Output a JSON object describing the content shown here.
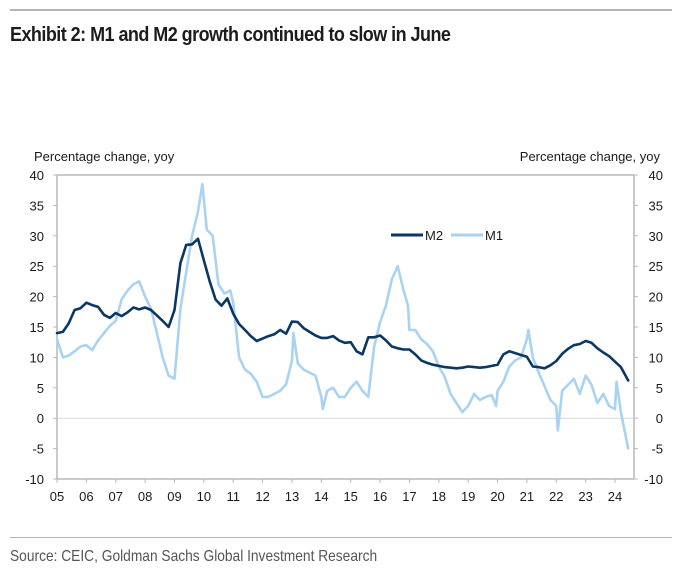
{
  "header": {
    "title": "Exhibit 2: M1 and M2 growth continued to slow in June"
  },
  "footer": {
    "source": "Source: CEIC, Goldman Sachs Global Investment Research"
  },
  "chart_data": {
    "type": "line",
    "title": "Exhibit 2: M1 and M2 growth continued to slow in June",
    "xlabel": "",
    "ylabel_left": "Percentage change, yoy",
    "ylabel_right": "Percentage change, yoy",
    "ylim": [
      -10,
      40
    ],
    "xlim": [
      2005,
      2024.65
    ],
    "yticks": [
      -10,
      -5,
      0,
      5,
      10,
      15,
      20,
      25,
      30,
      35,
      40
    ],
    "xtick_values": [
      2005,
      2006,
      2007,
      2008,
      2009,
      2010,
      2011,
      2012,
      2013,
      2014,
      2015,
      2016,
      2017,
      2018,
      2019,
      2020,
      2021,
      2022,
      2023,
      2024
    ],
    "xtick_labels": [
      "05",
      "06",
      "07",
      "08",
      "09",
      "10",
      "11",
      "12",
      "13",
      "14",
      "15",
      "16",
      "17",
      "18",
      "19",
      "20",
      "21",
      "22",
      "23",
      "24"
    ],
    "grid": "zero-line only",
    "legend": {
      "placement": "top-right",
      "entries": [
        "M2",
        "M1"
      ]
    },
    "colors": {
      "M2": "#0b3763",
      "M1": "#a9d3f2",
      "axis": "#b8b8b8",
      "zero_line": "#d9d9d9"
    },
    "series": [
      {
        "name": "M2",
        "x": [
          2005.0,
          2005.2,
          2005.4,
          2005.6,
          2005.8,
          2006.0,
          2006.2,
          2006.4,
          2006.6,
          2006.8,
          2007.0,
          2007.2,
          2007.4,
          2007.6,
          2007.8,
          2008.0,
          2008.2,
          2008.4,
          2008.6,
          2008.8,
          2009.0,
          2009.2,
          2009.4,
          2009.6,
          2009.8,
          2010.0,
          2010.2,
          2010.4,
          2010.6,
          2010.8,
          2011.0,
          2011.2,
          2011.4,
          2011.6,
          2011.8,
          2012.0,
          2012.2,
          2012.4,
          2012.6,
          2012.8,
          2013.0,
          2013.2,
          2013.4,
          2013.6,
          2013.8,
          2014.0,
          2014.2,
          2014.4,
          2014.6,
          2014.8,
          2015.0,
          2015.2,
          2015.4,
          2015.6,
          2015.8,
          2016.0,
          2016.2,
          2016.4,
          2016.6,
          2016.8,
          2017.0,
          2017.2,
          2017.4,
          2017.6,
          2017.8,
          2018.0,
          2018.2,
          2018.4,
          2018.6,
          2018.8,
          2019.0,
          2019.2,
          2019.4,
          2019.6,
          2019.8,
          2020.0,
          2020.2,
          2020.4,
          2020.6,
          2020.8,
          2021.0,
          2021.2,
          2021.4,
          2021.6,
          2021.8,
          2022.0,
          2022.2,
          2022.4,
          2022.6,
          2022.8,
          2023.0,
          2023.2,
          2023.4,
          2023.6,
          2023.8,
          2024.0,
          2024.2,
          2024.45
        ],
        "values": [
          14.0,
          14.2,
          15.6,
          17.8,
          18.1,
          19.0,
          18.6,
          18.3,
          17.0,
          16.5,
          17.3,
          16.8,
          17.4,
          18.2,
          17.9,
          18.2,
          17.8,
          16.9,
          16.0,
          15.0,
          17.8,
          25.5,
          28.5,
          28.6,
          29.5,
          26.0,
          22.5,
          19.5,
          18.5,
          19.7,
          17.2,
          15.5,
          14.5,
          13.5,
          12.7,
          13.1,
          13.5,
          13.8,
          14.5,
          13.9,
          15.9,
          15.8,
          14.8,
          14.2,
          13.6,
          13.2,
          13.2,
          13.5,
          12.8,
          12.4,
          12.5,
          11.0,
          10.5,
          13.3,
          13.3,
          13.6,
          12.8,
          11.8,
          11.5,
          11.3,
          11.3,
          10.5,
          9.5,
          9.1,
          8.8,
          8.6,
          8.4,
          8.3,
          8.2,
          8.3,
          8.5,
          8.4,
          8.3,
          8.4,
          8.6,
          8.8,
          10.5,
          11.0,
          10.7,
          10.4,
          10.1,
          8.5,
          8.4,
          8.2,
          8.7,
          9.4,
          10.6,
          11.4,
          12.0,
          12.2,
          12.7,
          12.4,
          11.5,
          10.8,
          10.2,
          9.3,
          8.4,
          6.2
        ]
      },
      {
        "name": "M1",
        "x": [
          2005.0,
          2005.2,
          2005.4,
          2005.6,
          2005.8,
          2006.0,
          2006.2,
          2006.4,
          2006.6,
          2006.8,
          2007.0,
          2007.2,
          2007.4,
          2007.6,
          2007.8,
          2008.0,
          2008.2,
          2008.4,
          2008.6,
          2008.8,
          2009.0,
          2009.2,
          2009.4,
          2009.6,
          2009.8,
          2009.95,
          2010.1,
          2010.3,
          2010.5,
          2010.7,
          2010.9,
          2011.0,
          2011.2,
          2011.4,
          2011.6,
          2011.8,
          2012.0,
          2012.2,
          2012.4,
          2012.6,
          2012.8,
          2013.0,
          2013.05,
          2013.2,
          2013.4,
          2013.6,
          2013.8,
          2014.0,
          2014.05,
          2014.2,
          2014.4,
          2014.6,
          2014.8,
          2015.0,
          2015.2,
          2015.4,
          2015.6,
          2015.8,
          2016.0,
          2016.2,
          2016.4,
          2016.6,
          2016.8,
          2016.95,
          2017.0,
          2017.2,
          2017.4,
          2017.6,
          2017.8,
          2018.0,
          2018.2,
          2018.4,
          2018.6,
          2018.8,
          2019.0,
          2019.2,
          2019.4,
          2019.6,
          2019.8,
          2019.95,
          2020.0,
          2020.2,
          2020.4,
          2020.6,
          2020.8,
          2021.0,
          2021.05,
          2021.2,
          2021.4,
          2021.6,
          2021.8,
          2022.0,
          2022.05,
          2022.2,
          2022.4,
          2022.6,
          2022.8,
          2023.0,
          2023.2,
          2023.4,
          2023.6,
          2023.8,
          2024.0,
          2024.05,
          2024.2,
          2024.45
        ],
        "values": [
          13.0,
          10.0,
          10.3,
          11.0,
          11.8,
          12.0,
          11.2,
          12.8,
          14.0,
          15.2,
          16.0,
          19.5,
          21.0,
          22.0,
          22.5,
          20.0,
          18.0,
          14.0,
          10.0,
          7.0,
          6.5,
          18.0,
          24.0,
          30.0,
          34.0,
          38.5,
          31.0,
          30.0,
          22.0,
          20.5,
          21.0,
          19.0,
          10.0,
          8.0,
          7.3,
          6.0,
          3.5,
          3.5,
          4.0,
          4.5,
          5.6,
          9.5,
          14.0,
          9.0,
          8.0,
          7.5,
          7.0,
          3.5,
          1.5,
          4.5,
          5.0,
          3.5,
          3.5,
          5.0,
          6.0,
          4.5,
          3.5,
          11.8,
          15.8,
          18.5,
          22.8,
          25.0,
          21.0,
          18.5,
          14.5,
          14.5,
          13.0,
          12.2,
          11.0,
          8.5,
          6.8,
          4.0,
          2.5,
          1.0,
          2.0,
          4.0,
          3.0,
          3.5,
          3.8,
          2.0,
          4.5,
          6.0,
          8.5,
          9.5,
          10.0,
          13.0,
          14.5,
          10.0,
          7.5,
          5.3,
          3.0,
          2.0,
          -2.0,
          4.5,
          5.5,
          6.5,
          4.0,
          7.0,
          5.5,
          2.5,
          4.0,
          2.0,
          1.5,
          6.0,
          1.0,
          -5.0
        ]
      }
    ]
  }
}
